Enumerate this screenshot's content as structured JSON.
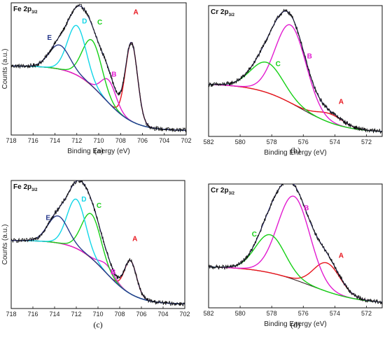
{
  "colors": {
    "envelope": "#2b2b6e",
    "raw": "#111111",
    "background": "#3a2a2a",
    "A": "#e8141c",
    "B": "#e21bd0",
    "C": "#16d016",
    "D": "#12d6e8",
    "E": "#283a8c"
  },
  "chart_data": [
    {
      "type": "line",
      "panel_label": "(a)",
      "title_main": "Fe 2p",
      "title_sub": "3/2",
      "xlabel": "Binding Energy (eV)",
      "ylabel": "Counts (a.u.)",
      "xlim": [
        718,
        702
      ],
      "xticks": [
        718,
        716,
        714,
        712,
        710,
        708,
        706,
        704,
        702
      ],
      "baseline": {
        "left": 0.545,
        "right": 0.035,
        "center": 709.5,
        "width": 1.4
      },
      "peaks": [
        {
          "name": "A",
          "center": 707.0,
          "height": 0.62,
          "fwhm": 1.3,
          "label_at": [
            706.6,
            0.95
          ]
        },
        {
          "name": "B",
          "center": 709.1,
          "height": 0.18,
          "fwhm": 1.6,
          "label_at": [
            708.6,
            0.46
          ]
        },
        {
          "name": "C",
          "center": 710.6,
          "height": 0.36,
          "fwhm": 2.1,
          "label_at": [
            709.9,
            0.87
          ]
        },
        {
          "name": "D",
          "center": 712.0,
          "height": 0.39,
          "fwhm": 2.0,
          "label_at": [
            711.3,
            0.88
          ]
        },
        {
          "name": "E",
          "center": 713.6,
          "height": 0.19,
          "fwhm": 2.2,
          "label_at": [
            714.5,
            0.75
          ]
        }
      ],
      "ylim": [
        0,
        1
      ]
    },
    {
      "type": "line",
      "panel_label": "(b)",
      "title_main": "Cr 2p",
      "title_sub": "3/2",
      "xlabel": "Binding Energy (eV)",
      "ylabel": "",
      "xlim": [
        582,
        571
      ],
      "xticks": [
        582,
        580,
        578,
        576,
        574,
        572
      ],
      "baseline": {
        "left": 0.42,
        "right": 0.03,
        "center": 576.2,
        "width": 1.4
      },
      "peaks": [
        {
          "name": "A",
          "center": 574.3,
          "height": 0.07,
          "fwhm": 2.0,
          "label_at": [
            573.6,
            0.26
          ]
        },
        {
          "name": "B",
          "center": 576.8,
          "height": 0.62,
          "fwhm": 2.3,
          "label_at": [
            575.6,
            0.62
          ]
        },
        {
          "name": "C",
          "center": 578.3,
          "height": 0.24,
          "fwhm": 2.4,
          "label_at": [
            577.6,
            0.56
          ]
        }
      ],
      "ylim": [
        0,
        1
      ]
    },
    {
      "type": "line",
      "panel_label": "(c)",
      "title_main": "Fe 2p",
      "title_sub": "3/2",
      "xlabel": "",
      "ylabel": "Counts (a.u.)",
      "xlim": [
        718,
        702
      ],
      "xticks": [
        718,
        716,
        714,
        712,
        710,
        708,
        706,
        704,
        702
      ],
      "baseline": {
        "left": 0.555,
        "right": 0.035,
        "center": 709.3,
        "width": 1.4
      },
      "peaks": [
        {
          "name": "A",
          "center": 707.0,
          "height": 0.27,
          "fwhm": 1.3,
          "label_at": [
            706.6,
            0.55
          ]
        },
        {
          "name": "B",
          "center": 709.2,
          "height": 0.07,
          "fwhm": 1.6,
          "label_at": [
            708.6,
            0.28
          ]
        },
        {
          "name": "C",
          "center": 710.6,
          "height": 0.36,
          "fwhm": 2.1,
          "label_at": [
            709.9,
            0.82
          ]
        },
        {
          "name": "D",
          "center": 712.0,
          "height": 0.4,
          "fwhm": 2.0,
          "label_at": [
            711.3,
            0.87
          ]
        },
        {
          "name": "E",
          "center": 713.7,
          "height": 0.22,
          "fwhm": 2.2,
          "label_at": [
            714.6,
            0.72
          ]
        }
      ],
      "ylim": [
        0,
        1
      ]
    },
    {
      "type": "line",
      "panel_label": "(d)",
      "title_main": "Cr 2p",
      "title_sub": "3/2",
      "xlabel": "Binding Energy (eV)",
      "ylabel": "",
      "xlim": [
        582,
        571
      ],
      "xticks": [
        582,
        580,
        578,
        576,
        574,
        572
      ],
      "baseline": {
        "left": 0.35,
        "right": 0.03,
        "center": 575.6,
        "width": 1.6
      },
      "peaks": [
        {
          "name": "A",
          "center": 574.5,
          "height": 0.24,
          "fwhm": 2.0,
          "label_at": [
            573.6,
            0.42
          ]
        },
        {
          "name": "B",
          "center": 576.6,
          "height": 0.7,
          "fwhm": 2.4,
          "label_at": [
            575.8,
            0.82
          ]
        },
        {
          "name": "C",
          "center": 578.1,
          "height": 0.32,
          "fwhm": 2.2,
          "label_at": [
            579.1,
            0.6
          ]
        }
      ],
      "ylim": [
        0,
        1
      ]
    }
  ]
}
